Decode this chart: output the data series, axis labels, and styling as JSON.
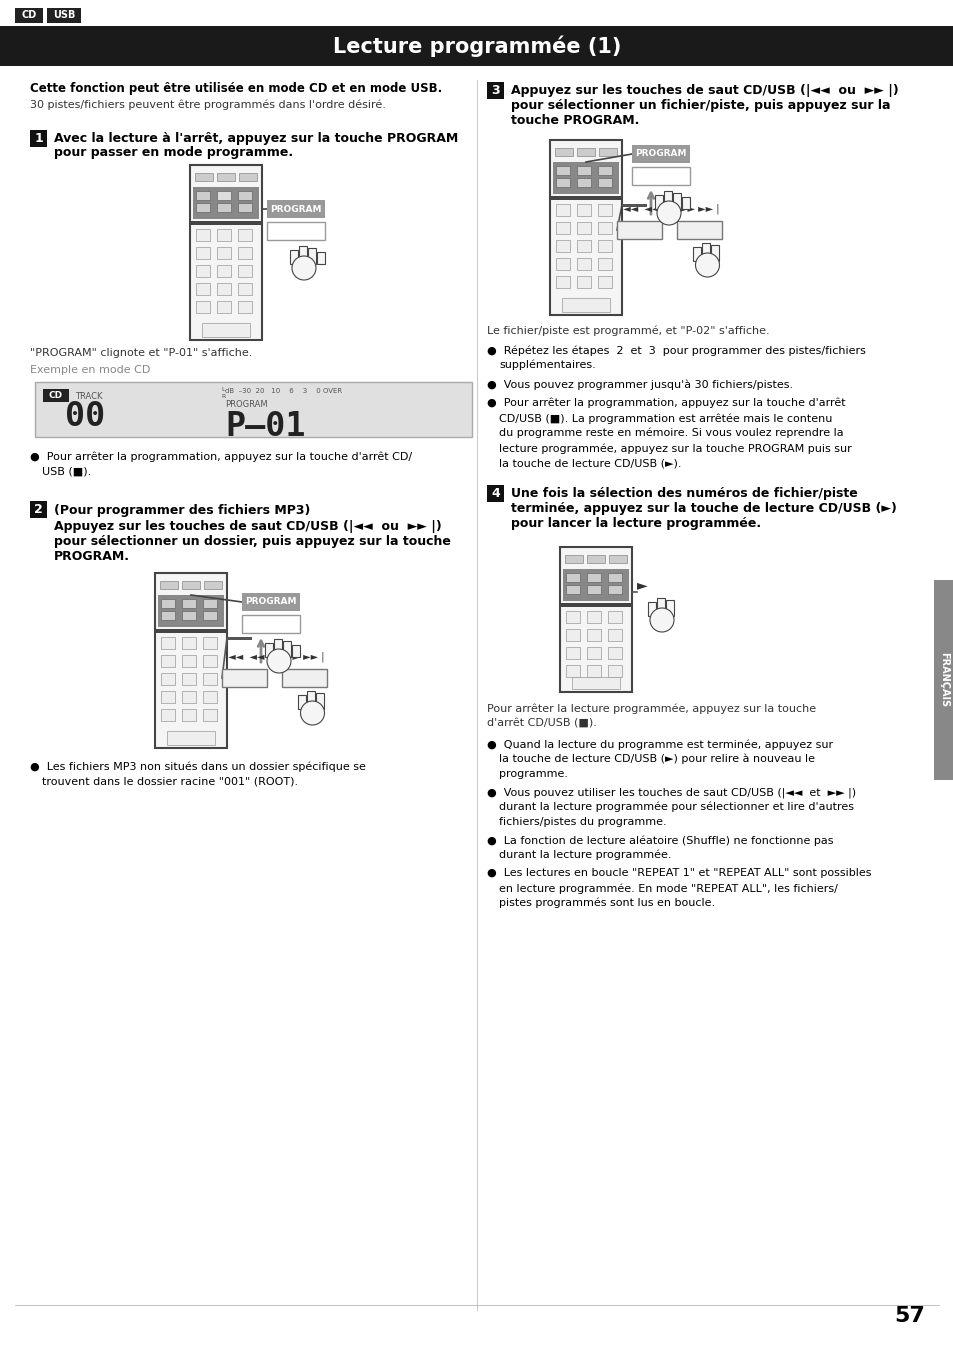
{
  "title": "Lecture programmée (1)",
  "bg_color": "#ffffff",
  "header_bg": "#1a1a1a",
  "header_text_color": "#ffffff",
  "tag_bg": "#1a1a1a",
  "tag_text_color": "#ffffff",
  "page_number": "57",
  "sidebar_text": "FRANÇAIS",
  "sidebar_bg": "#888888",
  "intro_bold": "Cette fonction peut être utilisée en mode CD et en mode USB.",
  "intro_normal": "30 pistes/fichiers peuvent être programmés dans l'ordre désiré.",
  "step1_line1": "Avec la lecture à l'arrêt, appuyez sur la touche PROGRAM",
  "step1_line2": "pour passer en mode programme.",
  "step1_note1": "\"PROGRAM\" clignote et \"P-01\" s'affiche.",
  "step1_note2": "Exemple en mode CD",
  "step1_bullet": "Pour arrêter la programmation, appuyez sur la touche d'arrêt CD/",
  "step1_bullet2": "USB (",
  "step2_title": "(Pour programmer des fichiers MP3)",
  "step2_line1": "Appuyez sur les touches de saut CD/USB (|◄◄  ou  ►► |)",
  "step2_line2": "pour sélectionner un dossier, puis appuyez sur la touche",
  "step2_line3": "PROGRAM.",
  "step2_bullet1": "Les fichiers MP3 non situés dans un dossier spécifique se",
  "step2_bullet2": "trouvent dans le dossier racine \"001\" (ROOT).",
  "step3_line1": "Appuyez sur les touches de saut CD/USB (|◄◄  ou  ►► |)",
  "step3_line2": "pour sélectionner un fichier/piste, puis appuyez sur la",
  "step3_line3": "touche PROGRAM.",
  "step3_note": "Le fichier/piste est programmé, et \"P-02\" s'affiche.",
  "step3_b1l1": "Répétez les étapes  et  pour programmer des pistes/fichiers",
  "step3_b1l2": "supplémentaires.",
  "step3_b2": "Vous pouvez programmer jusqu'à 30 fichiers/pistes.",
  "step3_b3l1": "Pour arrêter la programmation, appuyez sur la touche d'arrêt",
  "step3_b3l2": "CD/USB (■). La programmation est arrêtée mais le contenu",
  "step3_b3l3": "du programme reste en mémoire. Si vous voulez reprendre la",
  "step3_b3l4": "lecture programmée, appuyez sur la touche PROGRAM puis sur",
  "step3_b3l5": "la touche de lecture CD/USB (►).",
  "step4_line1": "Une fois la sélection des numéros de fichier/piste",
  "step4_line2": "terminée, appuyez sur la touche de lecture CD/USB (►)",
  "step4_line3": "pour lancer la lecture programmée.",
  "step4_note1": "Pour arrêter la lecture programmée, appuyez sur la touche",
  "step4_note2": "d'arrêt CD/USB (■).",
  "step4_b1l1": "Quand la lecture du programme est terminée, appuyez sur",
  "step4_b1l2": "la touche de lecture CD/USB (►) pour relire à nouveau le",
  "step4_b1l3": "programme.",
  "step4_b2l1": "Vous pouvez utiliser les touches de saut CD/USB (|◄◄  et  ►► |)",
  "step4_b2l2": "durant la lecture programmée pour sélectionner et lire d'autres",
  "step4_b2l3": "fichiers/pistes du programme.",
  "step4_b3l1": "La fonction de lecture aléatoire (Shuffle) ne fonctionne pas",
  "step4_b3l2": "durant la lecture programmée.",
  "step4_b4l1": "Les lectures en boucle \"REPEAT 1\" et \"REPEAT ALL\" sont possibles",
  "step4_b4l2": "en lecture programmée. En mode \"REPEAT ALL\", les fichiers/",
  "step4_b4l3": "pistes programmés sont lus en boucle."
}
